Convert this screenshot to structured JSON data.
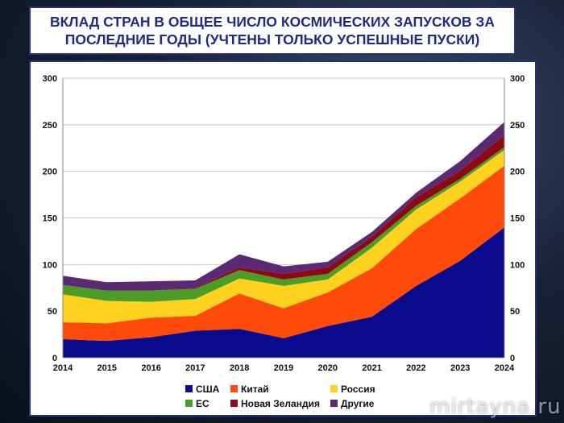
{
  "title": "ВКЛАД СТРАН В ОБЩЕЕ ЧИСЛО КОСМИЧЕСКИХ ЗАПУСКОВ ЗА\nПОСЛЕДНИЕ ГОДЫ (УЧТЕНЫ ТОЛЬКО УСПЕШНЫЕ ПУСКИ)",
  "watermark": "mirtayna.ru",
  "chart_data": {
    "type": "area",
    "stacked": true,
    "x": [
      2014,
      2015,
      2016,
      2017,
      2018,
      2019,
      2020,
      2021,
      2022,
      2023,
      2024
    ],
    "ylim": [
      0,
      300
    ],
    "yticks": [
      0,
      50,
      100,
      150,
      200,
      250,
      300
    ],
    "grid": true,
    "legend_position": "bottom",
    "series": [
      {
        "name": "США",
        "color": "#0a0a8c",
        "values": [
          20,
          18,
          22,
          29,
          31,
          21,
          34,
          44,
          77,
          104,
          140
        ]
      },
      {
        "name": "Китай",
        "color": "#ff4a0a",
        "values": [
          18,
          19,
          21,
          16,
          38,
          32,
          36,
          52,
          61,
          67,
          66
        ]
      },
      {
        "name": "Россия",
        "color": "#ffd21f",
        "values": [
          30,
          24,
          17,
          18,
          16,
          24,
          14,
          22,
          21,
          18,
          17
        ]
      },
      {
        "name": "ЕС",
        "color": "#4c9c28",
        "values": [
          10,
          11,
          12,
          11,
          9,
          7,
          6,
          6,
          4,
          3,
          3
        ]
      },
      {
        "name": "Новая Зеландия",
        "color": "#8c0a14",
        "values": [
          0,
          0,
          0,
          1,
          3,
          6,
          7,
          6,
          9,
          9,
          13
        ]
      },
      {
        "name": "Другие",
        "color": "#5c2a74",
        "values": [
          10,
          9,
          10,
          8,
          14,
          8,
          6,
          5,
          5,
          10,
          14
        ]
      }
    ]
  }
}
